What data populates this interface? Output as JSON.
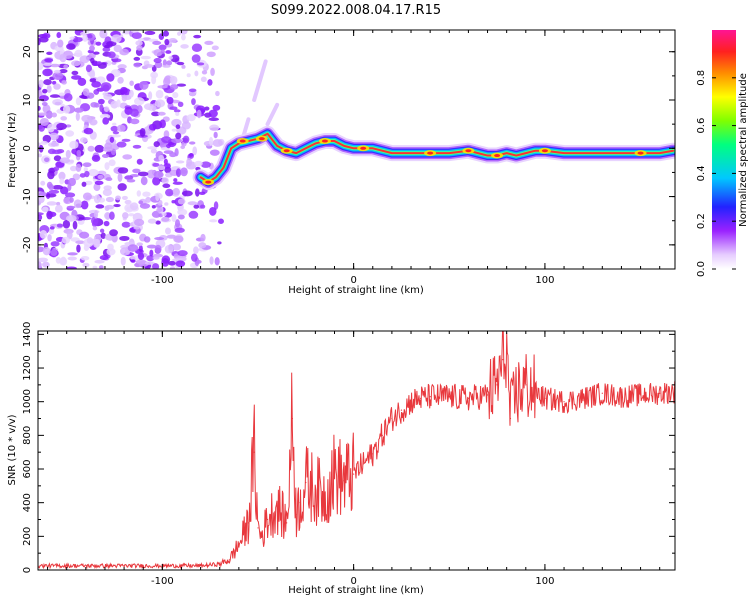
{
  "title": "S099.2022.008.04.17.R15",
  "chart_data": [
    {
      "type": "heatmap",
      "xlabel": "Height of straight line (km)",
      "ylabel": "Frequency (Hz)",
      "xlim": [
        -165,
        168
      ],
      "ylim": [
        -25,
        24.5
      ],
      "xticks": [
        -100,
        0,
        100
      ],
      "xtick_labels": [
        "-100",
        "0",
        "100"
      ],
      "yticks": [
        -20,
        -10,
        0,
        10,
        20
      ],
      "ytick_labels": [
        "-20",
        "-10",
        "0",
        "10",
        "20"
      ],
      "colorbar": {
        "label": "Normalized spectral amplitude",
        "range": [
          0,
          1
        ],
        "ticks": [
          0,
          0.2,
          0.4,
          0.6,
          0.8
        ],
        "tick_labels": [
          "0.0",
          "0.2",
          "0.4",
          "0.6",
          "0.8"
        ],
        "colormap": "rainbow (white → purple → blue → cyan → green → yellow → orange → red → pink)"
      },
      "ridge": {
        "x": [
          -80,
          -76,
          -72,
          -68,
          -64,
          -60,
          -55,
          -50,
          -45,
          -40,
          -35,
          -30,
          -25,
          -20,
          -15,
          -10,
          -5,
          0,
          10,
          20,
          30,
          40,
          50,
          60,
          65,
          70,
          75,
          80,
          85,
          90,
          95,
          100,
          110,
          120,
          130,
          140,
          150,
          160,
          167
        ],
        "y": [
          -6,
          -7,
          -6,
          -4,
          0,
          1,
          1.5,
          2,
          3,
          0.5,
          -0.5,
          -1,
          0,
          1,
          1.5,
          1.5,
          0.5,
          0,
          0,
          -1,
          -1,
          -1,
          -1,
          -0.5,
          -1,
          -1.5,
          -1.5,
          -1,
          -1.5,
          -1,
          -0.5,
          -0.5,
          -1,
          -1,
          -1,
          -1,
          -1,
          -1,
          -0.5
        ]
      },
      "noise_region_x": [
        -165,
        -75
      ]
    },
    {
      "type": "line",
      "xlabel": "Height of straight line (km)",
      "ylabel": "SNR (10 * v/v)",
      "xlim": [
        -165,
        168
      ],
      "ylim": [
        0,
        1420
      ],
      "xticks": [
        -100,
        0,
        100
      ],
      "xtick_labels": [
        "-100",
        "0",
        "100"
      ],
      "yticks": [
        0,
        200,
        400,
        600,
        800,
        1000,
        1200,
        1400
      ],
      "ytick_labels": [
        "0",
        "200",
        "400",
        "600",
        "800",
        "1000",
        "1200",
        "1400"
      ],
      "color": "#e8383d",
      "series": [
        {
          "x": [
            -165,
            -120,
            -80,
            -70,
            -65,
            -60,
            -55,
            -52,
            -50,
            -48,
            -45,
            -40,
            -35,
            -32,
            -30,
            -28,
            -25,
            -20,
            -15,
            -10,
            -5,
            0,
            5,
            10,
            15,
            20,
            25,
            30,
            35,
            40,
            50,
            60,
            70,
            75,
            78,
            80,
            82,
            85,
            90,
            100,
            110,
            120,
            130,
            140,
            150,
            160,
            168
          ],
          "y": [
            25,
            25,
            25,
            35,
            60,
            150,
            280,
            700,
            250,
            200,
            300,
            380,
            280,
            900,
            330,
            400,
            520,
            480,
            440,
            580,
            530,
            570,
            630,
            690,
            800,
            900,
            950,
            1000,
            1020,
            1030,
            1030,
            1020,
            1040,
            1100,
            1250,
            1300,
            900,
            1050,
            1100,
            1020,
            1000,
            1020,
            1050,
            1030,
            1040,
            1050,
            1060
          ]
        }
      ]
    }
  ]
}
